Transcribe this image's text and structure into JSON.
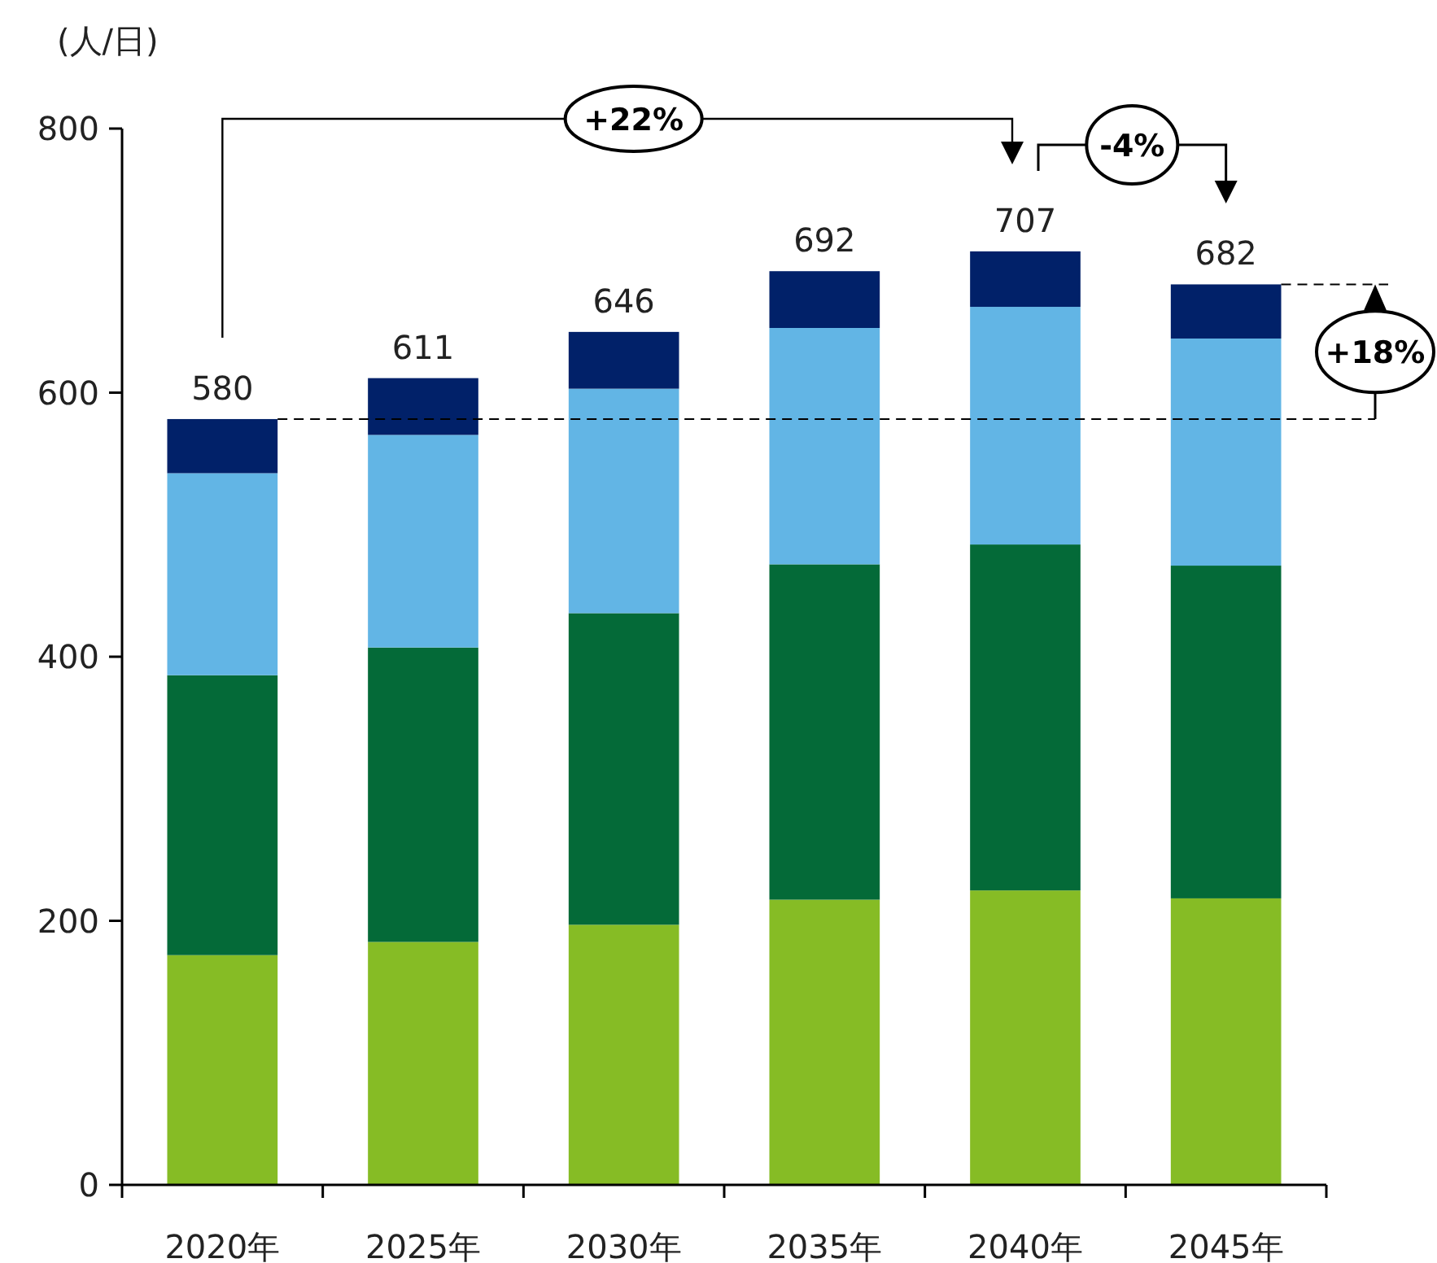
{
  "chart_data": {
    "type": "bar",
    "stacked": true,
    "ylabel": "(人/日)",
    "categories": [
      "2020年",
      "2025年",
      "2030年",
      "2035年",
      "2040年",
      "2045年"
    ],
    "series": [
      {
        "color": "#86bc25",
        "values": [
          174,
          184,
          197,
          216,
          223,
          217
        ]
      },
      {
        "color": "#046a38",
        "values": [
          212,
          223,
          236,
          254,
          262,
          252
        ]
      },
      {
        "color": "#62b5e5",
        "values": [
          153,
          161,
          170,
          179,
          180,
          172
        ]
      },
      {
        "color": "#012169",
        "values": [
          41,
          43,
          43,
          43,
          42,
          41
        ]
      }
    ],
    "totals": [
      "580",
      "611",
      "646",
      "692",
      "707",
      "682"
    ],
    "ylim": [
      0,
      800
    ],
    "yticks": [
      0,
      200,
      400,
      600,
      800
    ],
    "ref_lines": [
      {
        "axis": "y",
        "value": 580,
        "line_style": "dashed",
        "color": "#000000"
      }
    ],
    "annotations": [
      "+22%",
      "-4%",
      "+18%"
    ],
    "grid": false
  }
}
